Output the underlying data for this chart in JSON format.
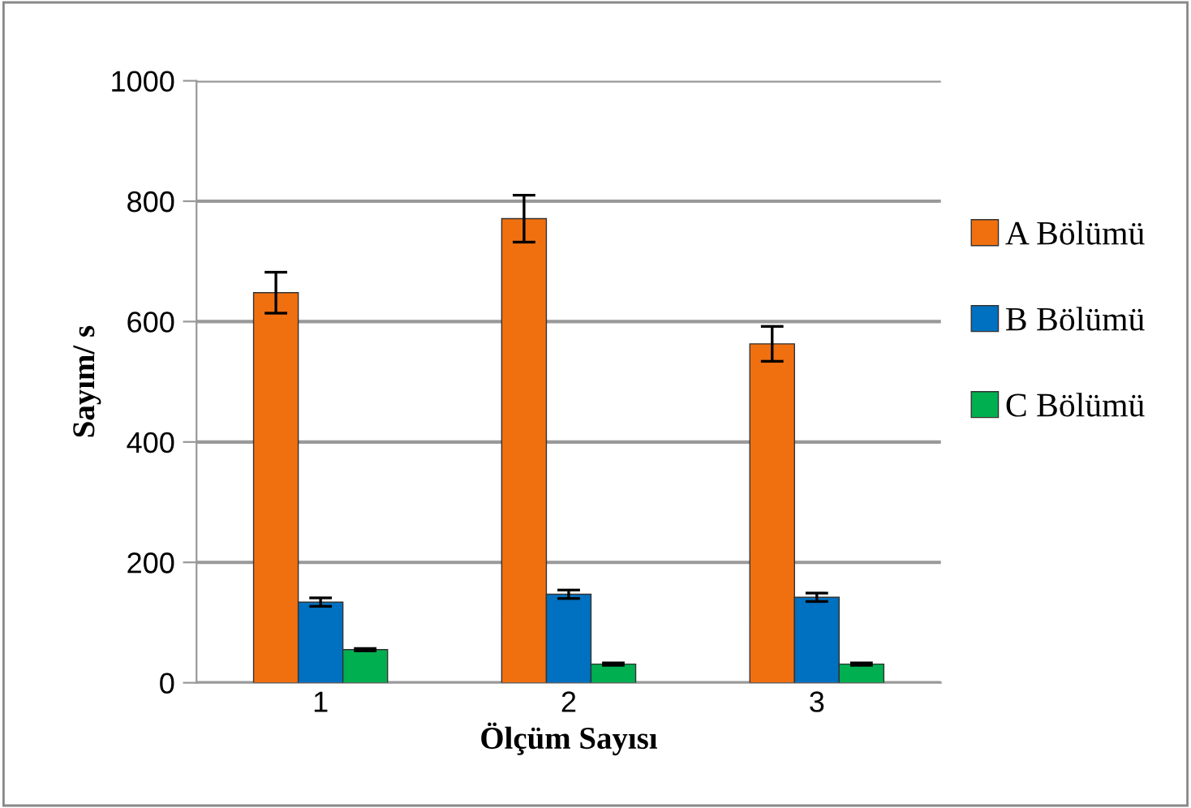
{
  "chart_data": {
    "type": "bar",
    "xlabel": "Ölçüm Sayısı",
    "ylabel": "Sayım/ s",
    "categories": [
      "1",
      "2",
      "3"
    ],
    "series": [
      {
        "name": "A Bölümü",
        "color": "#f07010",
        "values": [
          648,
          771,
          563
        ],
        "errors": [
          34,
          39,
          29
        ]
      },
      {
        "name": "B Bölümü",
        "color": "#0070c0",
        "values": [
          134,
          147,
          142
        ],
        "errors": [
          7,
          7,
          7
        ]
      },
      {
        "name": "C Bölümü",
        "color": "#00b050",
        "values": [
          55,
          31,
          31
        ],
        "errors": [
          2,
          2,
          2
        ]
      }
    ],
    "ylim": [
      0,
      1000
    ],
    "yticks": [
      0,
      200,
      400,
      600,
      800,
      1000
    ],
    "grid": "y",
    "legend": "right"
  }
}
